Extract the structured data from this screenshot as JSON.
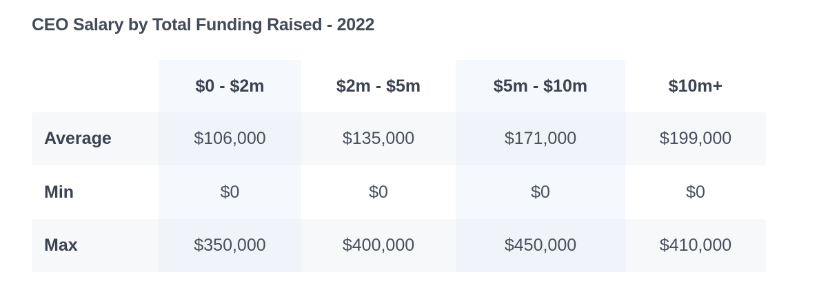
{
  "header": {
    "title": "CEO Salary by Total Funding Raised - 2022"
  },
  "table": {
    "columns": [
      "$0 - $2m",
      "$2m - $5m",
      "$5m - $10m",
      "$10m+"
    ],
    "rows": [
      [
        "Average",
        "$106,000",
        "$135,000",
        "$171,000",
        "$199,000"
      ],
      [
        "Min",
        "$0",
        "$0",
        "$0",
        "$0"
      ],
      [
        "Max",
        "$350,000",
        "$400,000",
        "$450,000",
        "$410,000"
      ]
    ]
  }
}
